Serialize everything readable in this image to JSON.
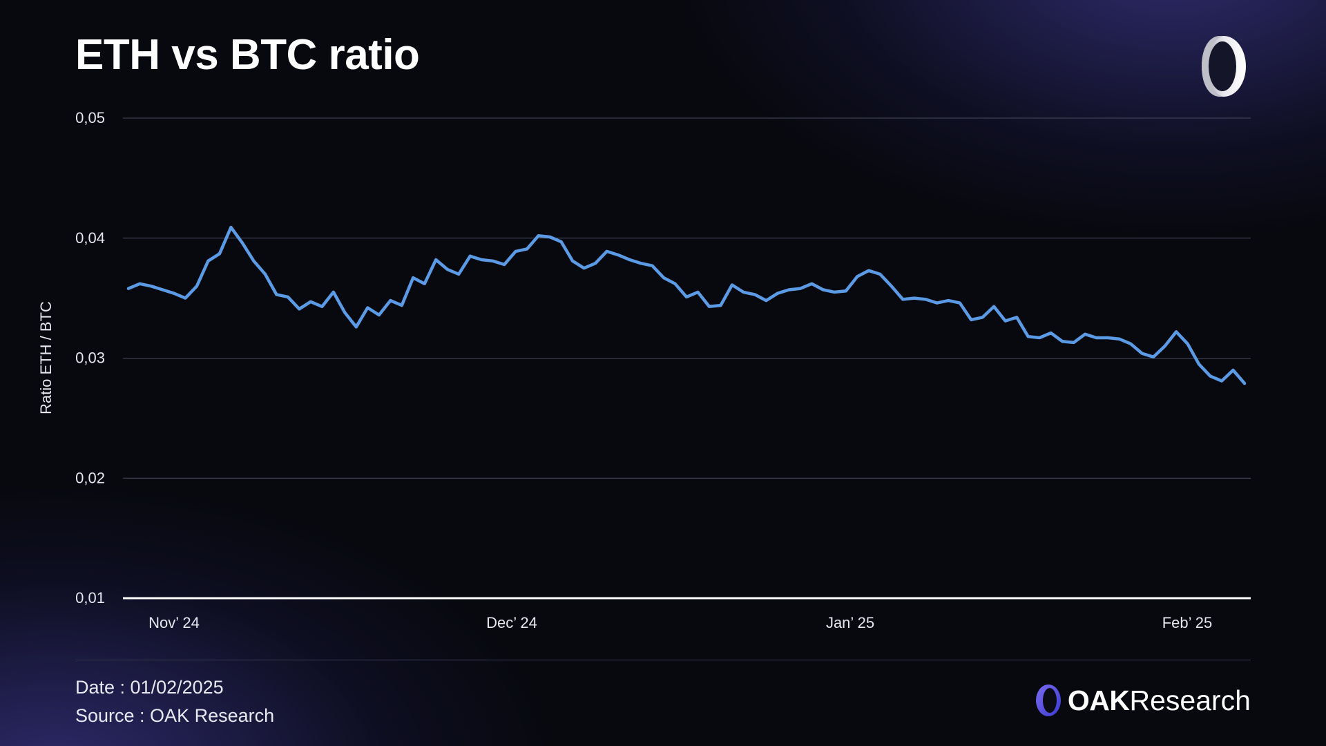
{
  "title": "ETH vs BTC ratio",
  "footer": {
    "date": "Date : 01/02/2025",
    "source": "Source : OAK Research"
  },
  "brand": {
    "bold": "OAK",
    "rest": "Research",
    "icon": "oak-ring-logo-icon"
  },
  "colors": {
    "line": "#5b9be6",
    "background": "#08090f",
    "accent": "#4d4dd6"
  },
  "chart_data": {
    "type": "line",
    "title": "ETH vs BTC ratio",
    "ylabel": "Ratio ETH / BTC",
    "xlabel": "",
    "ylim": [
      0.01,
      0.05
    ],
    "yticks": [
      "0,05",
      "0,04",
      "0,03",
      "0,02",
      "0,01"
    ],
    "ytick_values": [
      0.05,
      0.04,
      0.03,
      0.02,
      0.01
    ],
    "xticks": [
      "Nov’ 24",
      "Dec’ 24",
      "Jan’ 25",
      "Feb’ 25"
    ],
    "grid": true,
    "frequency": "daily",
    "values": [
      0.0358,
      0.0362,
      0.036,
      0.0357,
      0.0354,
      0.035,
      0.036,
      0.0381,
      0.0387,
      0.0409,
      0.0396,
      0.0381,
      0.037,
      0.0353,
      0.0351,
      0.0341,
      0.0347,
      0.0343,
      0.0355,
      0.0338,
      0.0326,
      0.0342,
      0.0336,
      0.0348,
      0.0344,
      0.0367,
      0.0362,
      0.0382,
      0.0374,
      0.037,
      0.0385,
      0.0382,
      0.0381,
      0.0378,
      0.0389,
      0.0391,
      0.0402,
      0.0401,
      0.0397,
      0.0381,
      0.0375,
      0.0379,
      0.0389,
      0.0386,
      0.0382,
      0.0379,
      0.0377,
      0.0367,
      0.0362,
      0.0351,
      0.0355,
      0.0343,
      0.0344,
      0.0361,
      0.0355,
      0.0353,
      0.0348,
      0.0354,
      0.0357,
      0.0358,
      0.0362,
      0.0357,
      0.0355,
      0.0356,
      0.0368,
      0.0373,
      0.037,
      0.036,
      0.0349,
      0.035,
      0.0349,
      0.0346,
      0.0348,
      0.0346,
      0.0332,
      0.0334,
      0.0343,
      0.0331,
      0.0334,
      0.0318,
      0.0317,
      0.0321,
      0.0314,
      0.0313,
      0.032,
      0.0317,
      0.0317,
      0.0316,
      0.0312,
      0.0304,
      0.0301,
      0.031,
      0.0322,
      0.0312,
      0.0295,
      0.0285,
      0.0281,
      0.029,
      0.0279
    ]
  }
}
